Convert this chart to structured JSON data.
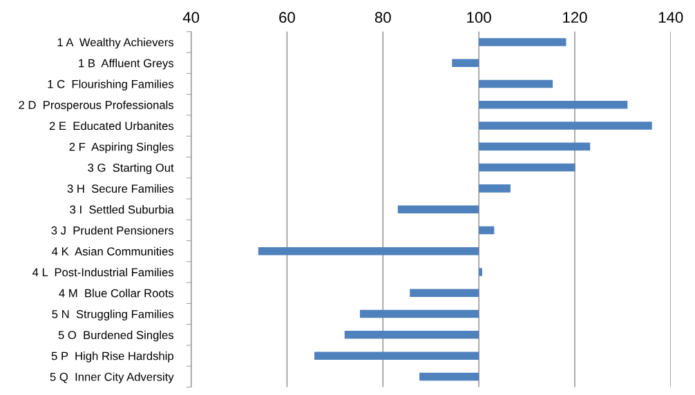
{
  "chart_data": {
    "type": "bar",
    "orientation": "horizontal",
    "categories": [
      "1 A  Wealthy Achievers",
      "1 B  Affluent Greys",
      "1 C  Flourishing Families",
      "2 D  Prosperous Professionals",
      "2 E  Educated Urbanites",
      "2 F  Aspiring Singles",
      "3 G  Starting Out",
      "3 H  Secure Families",
      "3 I  Settled Suburbia",
      "3 J  Prudent Pensioners",
      "4 K  Asian Communities",
      "4 L  Post-Industrial Families",
      "4 M  Blue Collar Roots",
      "5 N  Struggling Families",
      "5 O  Burdened Singles",
      "5 P  High Rise Hardship",
      "5 Q  Inner City Adversity"
    ],
    "base": [
      100,
      100,
      100,
      100,
      100,
      100,
      100,
      100,
      100,
      100,
      100,
      100,
      100,
      100,
      100,
      100,
      100
    ],
    "values": [
      18.2,
      -5.6,
      15.4,
      31.0,
      36.1,
      23.2,
      20.1,
      6.6,
      -16.9,
      3.2,
      -46.0,
      0.7,
      -14.4,
      -24.8,
      -28.0,
      -34.3,
      -12.4
    ],
    "color": "#4f81bd",
    "xlim": [
      40,
      140
    ],
    "xticks": [
      40,
      60,
      80,
      100,
      120,
      140
    ],
    "grid": "x"
  }
}
